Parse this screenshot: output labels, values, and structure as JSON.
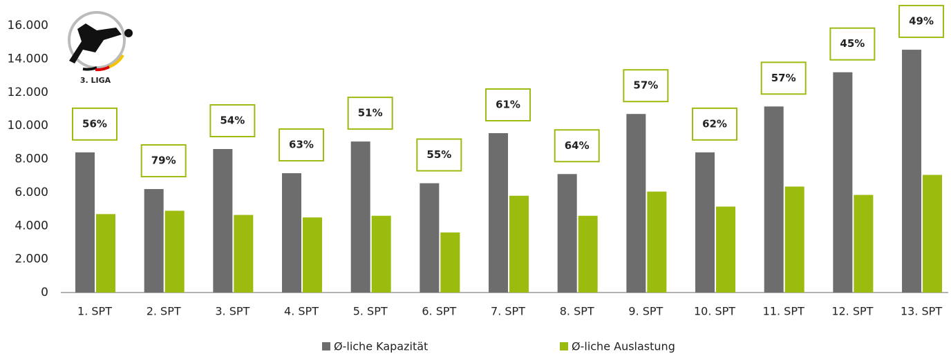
{
  "chart_data": {
    "type": "bar",
    "logo_text": "3. LIGA",
    "categories": [
      "1. SPT",
      "2. SPT",
      "3. SPT",
      "4. SPT",
      "5. SPT",
      "6. SPT",
      "7. SPT",
      "8. SPT",
      "9. SPT",
      "10. SPT",
      "11. SPT",
      "12. SPT",
      "13. SPT"
    ],
    "series": [
      {
        "name": "Ø-liche Kapazität",
        "color": "#6d6d6d",
        "values": [
          8400,
          6200,
          8600,
          7150,
          9050,
          6550,
          9550,
          7100,
          10700,
          8400,
          11150,
          13200,
          14550
        ]
      },
      {
        "name": "Ø-liche Auslastung",
        "color": "#9bbb0f",
        "values": [
          4700,
          4900,
          4650,
          4500,
          4600,
          3600,
          5800,
          4600,
          6050,
          5150,
          6350,
          5850,
          7050
        ]
      }
    ],
    "annotations": {
      "color": "#9bbb0f",
      "values": [
        56,
        79,
        54,
        63,
        51,
        55,
        61,
        64,
        57,
        62,
        57,
        45,
        49
      ],
      "value_labels": [
        "56%",
        "79%",
        "54%",
        "63%",
        "51%",
        "55%",
        "61%",
        "64%",
        "57%",
        "62%",
        "57%",
        "45%",
        "49%"
      ]
    },
    "ylim": [
      0,
      16000
    ],
    "yticks": [
      0,
      {
        "value": 2000,
        "label": "2.000"
      },
      {
        "value": 4000,
        "label": "4.000"
      },
      {
        "value": 6000,
        "label": "6.000"
      },
      {
        "value": 8000,
        "label": "8.000"
      },
      {
        "value": 10000,
        "label": "10.000"
      },
      {
        "value": 12000,
        "label": "12.000"
      },
      {
        "value": 14000,
        "label": "14.000"
      },
      {
        "value": 16000,
        "label": "16.000"
      }
    ],
    "grid": false,
    "legend": "bottom"
  }
}
